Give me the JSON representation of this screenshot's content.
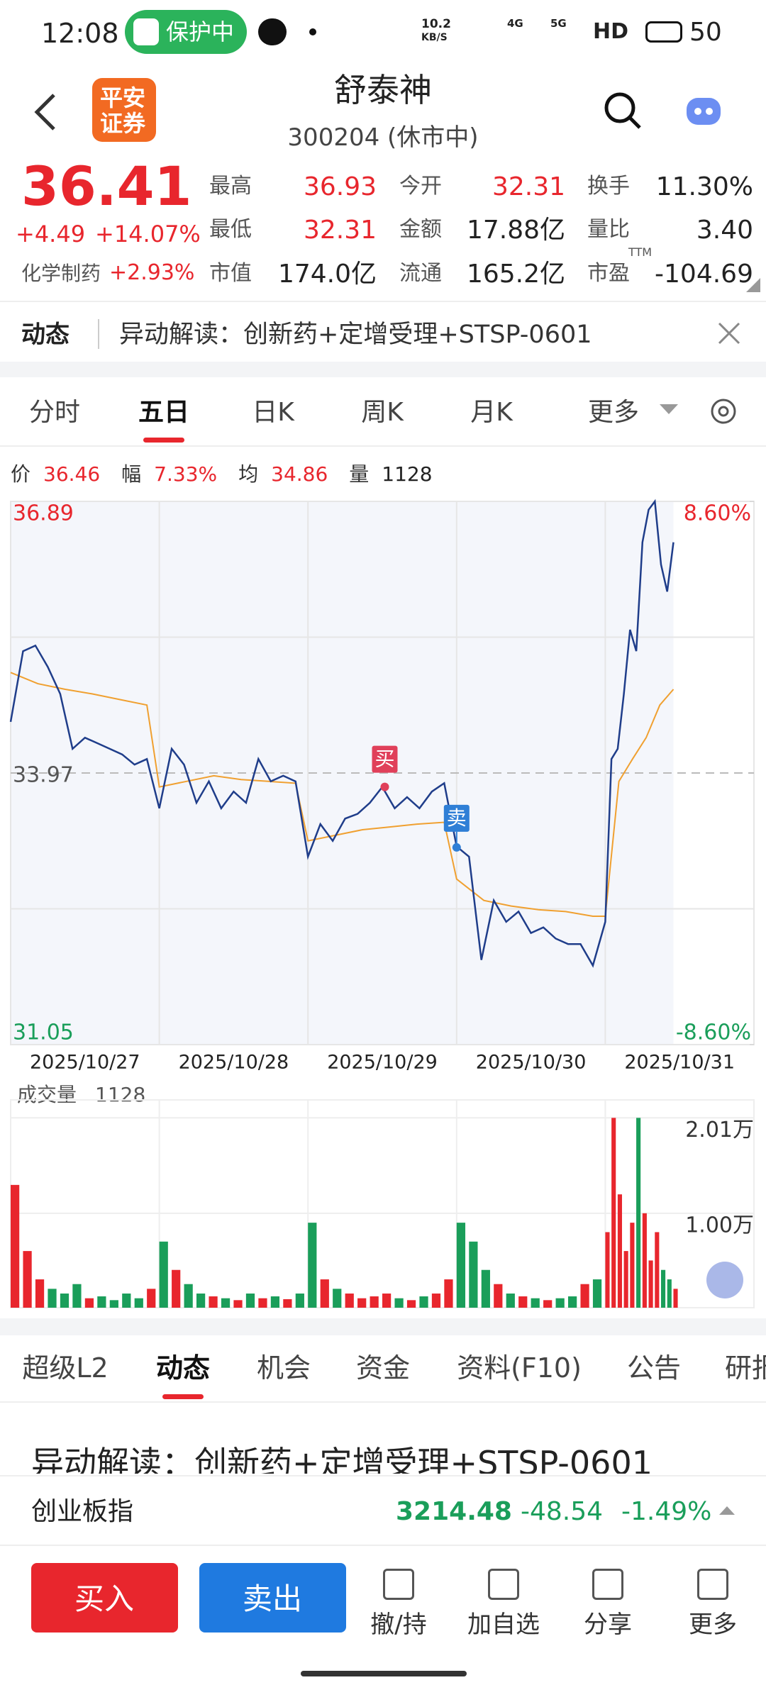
{
  "status_bar": {
    "time": "12:08",
    "protect": "保护中",
    "net_speed": "10.2",
    "net_unit": "KB/S",
    "signal1": "4G",
    "signal2": "5G",
    "hd": "HD",
    "battery": "50"
  },
  "header": {
    "logo": [
      "平安",
      "证券"
    ],
    "title": "舒泰神",
    "subtitle": "300204 (休市中)"
  },
  "quote": {
    "price": "36.41",
    "change": "+4.49",
    "change_pct": "+14.07%",
    "industry": "化学制药",
    "industry_pct": "+2.93%",
    "ttm": "TTM",
    "stats": [
      {
        "label": "最高",
        "value": "36.93",
        "tone": "up"
      },
      {
        "label": "今开",
        "value": "32.31",
        "tone": "up"
      },
      {
        "label": "换手",
        "value": "11.30%",
        "tone": "flat"
      },
      {
        "label": "最低",
        "value": "32.31",
        "tone": "up"
      },
      {
        "label": "金额",
        "value": "17.88亿",
        "tone": "flat"
      },
      {
        "label": "量比",
        "value": "3.40",
        "tone": "flat"
      },
      {
        "label": "市值",
        "value": "174.0亿",
        "tone": "flat"
      },
      {
        "label": "流通",
        "value": "165.2亿",
        "tone": "flat"
      },
      {
        "label": "市盈",
        "value": "-104.69",
        "tone": "flat"
      }
    ]
  },
  "news_bar": {
    "tag": "动态",
    "text": "异动解读：创新药+定增受理+STSP-0601"
  },
  "chart_tabs": {
    "items": [
      "分时",
      "五日",
      "日K",
      "周K",
      "月K",
      "更多"
    ],
    "active": 1
  },
  "info_line": [
    {
      "label": "价",
      "value": "36.46"
    },
    {
      "label": "幅",
      "value": "7.33%"
    },
    {
      "label": "均",
      "value": "34.86"
    },
    {
      "label": "量",
      "value": "1128"
    }
  ],
  "chart_data": [
    {
      "type": "line",
      "categories": [
        "2025/10/27",
        "2025/10/28",
        "2025/10/29",
        "2025/10/30",
        "2025/10/31"
      ],
      "xlim": [
        0,
        1200
      ],
      "ylim": [
        31.05,
        36.89
      ],
      "yticks": [
        31.05,
        33.97,
        36.89
      ],
      "y2lim": [
        -8.6,
        8.6
      ],
      "y2ticks": [
        {
          "value": 8.6,
          "label": "8.60%"
        },
        {
          "value": -8.6,
          "label": "-8.60%"
        }
      ],
      "grid": true,
      "series": [
        {
          "name": "价",
          "color": "#1f3d8a",
          "x": [
            0,
            20,
            40,
            60,
            80,
            100,
            120,
            140,
            160,
            180,
            200,
            220,
            240,
            260,
            280,
            300,
            320,
            340,
            360,
            380,
            400,
            420,
            440,
            460,
            480,
            500,
            520,
            540,
            560,
            580,
            600,
            620,
            640,
            660,
            680,
            700,
            720,
            740,
            760,
            780,
            800,
            820,
            840,
            860,
            880,
            900,
            920,
            940,
            960,
            970,
            980,
            990,
            1000,
            1010,
            1020,
            1030,
            1040,
            1050,
            1060,
            1070
          ],
          "values": [
            34.52,
            35.28,
            35.34,
            35.11,
            34.82,
            34.23,
            34.35,
            34.29,
            34.23,
            34.17,
            34.06,
            34.12,
            33.59,
            34.23,
            34.06,
            33.65,
            33.88,
            33.59,
            33.77,
            33.65,
            34.12,
            33.88,
            33.94,
            33.88,
            33.07,
            33.42,
            33.24,
            33.48,
            33.53,
            33.65,
            33.82,
            33.59,
            33.71,
            33.59,
            33.77,
            33.86,
            33.18,
            33.07,
            31.96,
            32.6,
            32.37,
            32.48,
            32.25,
            32.31,
            32.19,
            32.13,
            32.13,
            31.9,
            32.37,
            34.12,
            34.23,
            34.82,
            35.51,
            35.28,
            36.45,
            36.8,
            36.89,
            36.21,
            35.92,
            36.45
          ]
        },
        {
          "name": "均",
          "color": "#f0a030",
          "x": [
            0,
            44,
            88,
            132,
            176,
            220,
            240,
            284,
            328,
            372,
            416,
            460,
            480,
            524,
            568,
            612,
            656,
            700,
            720,
            764,
            808,
            852,
            896,
            940,
            960,
            982,
            1004,
            1026,
            1048,
            1070
          ],
          "values": [
            35.05,
            34.93,
            34.87,
            34.82,
            34.76,
            34.7,
            33.82,
            33.88,
            33.94,
            33.9,
            33.88,
            33.86,
            33.24,
            33.3,
            33.36,
            33.39,
            33.42,
            33.44,
            32.83,
            32.6,
            32.54,
            32.5,
            32.48,
            32.43,
            32.43,
            33.88,
            34.12,
            34.35,
            34.7,
            34.87
          ]
        }
      ],
      "annotations": [
        {
          "text": "买",
          "x": 604,
          "y": 33.82,
          "color": "#e0405a"
        },
        {
          "text": "卖",
          "x": 720,
          "y": 33.17,
          "color": "#2f7fd6"
        }
      ]
    },
    {
      "type": "bar",
      "title": "成交量",
      "title_value": "1128",
      "xlim": [
        0,
        1200
      ],
      "ylim": [
        0,
        22000
      ],
      "yticks": [
        {
          "value": 20100,
          "label": "2.01万"
        },
        {
          "value": 10000,
          "label": "1.00万"
        }
      ],
      "up_color": "#e8262d",
      "down_color": "#1a9e5a",
      "x": [
        0,
        20,
        40,
        60,
        80,
        100,
        120,
        140,
        160,
        180,
        200,
        220,
        240,
        260,
        280,
        300,
        320,
        340,
        360,
        380,
        400,
        420,
        440,
        460,
        480,
        500,
        520,
        540,
        560,
        580,
        600,
        620,
        640,
        660,
        680,
        700,
        720,
        740,
        760,
        780,
        800,
        820,
        840,
        860,
        880,
        900,
        920,
        940,
        960,
        970,
        980,
        990,
        1000,
        1010,
        1020,
        1030,
        1040,
        1050,
        1060,
        1070
      ],
      "values": [
        13000,
        6000,
        3000,
        2000,
        1500,
        2500,
        1000,
        1200,
        800,
        1500,
        1000,
        2000,
        7000,
        4000,
        2500,
        1500,
        1200,
        1000,
        800,
        1500,
        1000,
        1200,
        900,
        1500,
        9000,
        3000,
        2000,
        1500,
        1000,
        1200,
        1500,
        1000,
        800,
        1200,
        1500,
        3000,
        9000,
        7000,
        4000,
        2500,
        1500,
        1200,
        1000,
        800,
        1000,
        1200,
        2500,
        3000,
        8000,
        20100,
        12000,
        6000,
        9000,
        20100,
        10000,
        5000,
        8000,
        4000,
        3000,
        2000
      ]
    }
  ],
  "bottom_tabs": {
    "items": [
      "超级L2",
      "动态",
      "机会",
      "资金",
      "资料(F10)",
      "公告",
      "研报"
    ],
    "active": 1
  },
  "headline": "异动解读：创新药+定增受理+STSP-0601",
  "index_bar": {
    "name": "创业板指",
    "value": "3214.48",
    "change": "-48.54",
    "change_pct": "-1.49%"
  },
  "actions": {
    "buy": "买入",
    "sell": "卖出",
    "items": [
      "撤/持",
      "加自选",
      "分享",
      "更多"
    ]
  }
}
